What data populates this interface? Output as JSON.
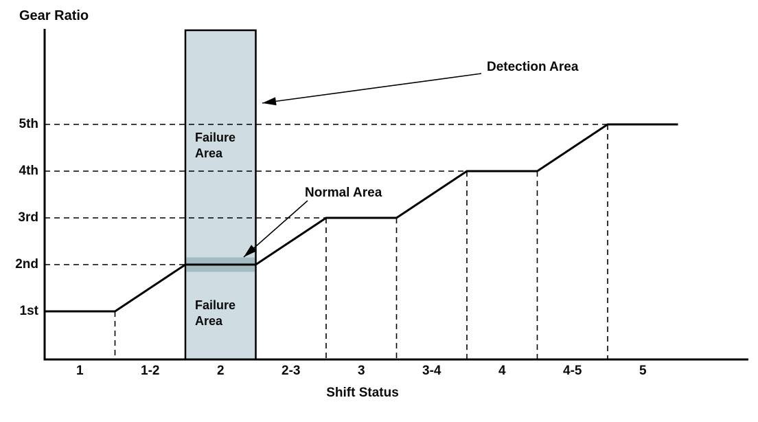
{
  "figure": {
    "y_axis_title": "Gear Ratio",
    "x_axis_title": "Shift Status",
    "labels": {
      "detection_area": "Detection Area",
      "normal_area": "Normal Area",
      "failure_top": {
        "line1": "Failure",
        "line2": "Area"
      },
      "failure_bottom": {
        "line1": "Failure",
        "line2": "Area"
      }
    }
  },
  "chart_data": {
    "type": "line",
    "title": "",
    "xlabel": "Shift Status",
    "ylabel": "Gear Ratio",
    "x_categories": [
      "1",
      "1-2",
      "2",
      "2-3",
      "3",
      "3-4",
      "4",
      "4-5",
      "5"
    ],
    "y_ticks": [
      {
        "value": 1,
        "label": "1st"
      },
      {
        "value": 2,
        "label": "2nd"
      },
      {
        "value": 3,
        "label": "3rd"
      },
      {
        "value": 4,
        "label": "4th"
      },
      {
        "value": 5,
        "label": "5th"
      }
    ],
    "series": [
      {
        "name": "gear-ratio-trace",
        "points_boundary_gear": [
          [
            0,
            1
          ],
          [
            1,
            1
          ],
          [
            2,
            2
          ],
          [
            3,
            2
          ],
          [
            4,
            3
          ],
          [
            5,
            3
          ],
          [
            6,
            4
          ],
          [
            7,
            4
          ],
          [
            8,
            5
          ],
          [
            9,
            5
          ]
        ]
      }
    ],
    "detection_band": {
      "category": "2",
      "spans_full_height": true
    },
    "normal_band": {
      "gear": 2
    },
    "grid": "dashed horizontal at 2nd-5th, dashed vertical at shift transitions",
    "legend_position": "none",
    "colors": {
      "band_fill": "#cfdce2",
      "normal_band_fill": "#a4bbc4",
      "line": "#000000",
      "background": "#ffffff"
    }
  }
}
